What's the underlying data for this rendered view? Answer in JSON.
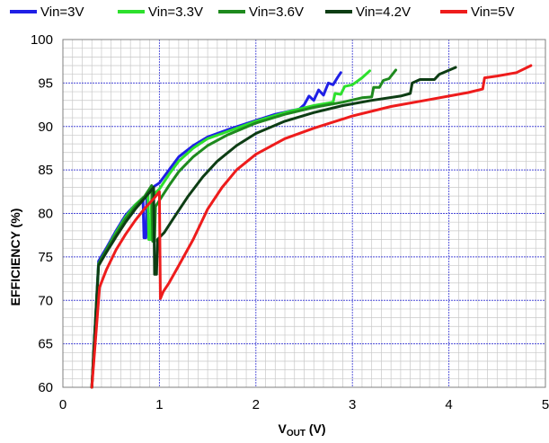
{
  "chart_data": {
    "type": "line",
    "title": "",
    "xlabel": {
      "main": "V",
      "sub": "OUT",
      "rest": " (V)"
    },
    "ylabel": "EFFICIENCY (%)",
    "xlim": [
      0,
      5
    ],
    "ylim": [
      60,
      100
    ],
    "x_ticks": [
      "0",
      "1",
      "2",
      "3",
      "4",
      "5"
    ],
    "y_ticks": [
      "60",
      "65",
      "70",
      "75",
      "80",
      "85",
      "90",
      "95",
      "100"
    ],
    "grid": {
      "major": true,
      "minor": true
    },
    "legend_position": "top",
    "series": [
      {
        "name": "Vin=3V",
        "color": "#1f1fe6",
        "points": [
          [
            0.3,
            60
          ],
          [
            0.37,
            74.5
          ],
          [
            0.45,
            76
          ],
          [
            0.55,
            78
          ],
          [
            0.65,
            79.8
          ],
          [
            0.75,
            81
          ],
          [
            0.83,
            81.8
          ],
          [
            0.84,
            77.2
          ],
          [
            0.86,
            77.2
          ],
          [
            0.87,
            82
          ],
          [
            0.9,
            82.6
          ],
          [
            0.93,
            83
          ],
          [
            1.0,
            83.5
          ],
          [
            1.1,
            85
          ],
          [
            1.2,
            86.5
          ],
          [
            1.35,
            87.8
          ],
          [
            1.5,
            88.8
          ],
          [
            1.7,
            89.6
          ],
          [
            2.0,
            90.7
          ],
          [
            2.2,
            91.4
          ],
          [
            2.45,
            92.0
          ],
          [
            2.5,
            92.5
          ],
          [
            2.55,
            93.5
          ],
          [
            2.6,
            93.0
          ],
          [
            2.65,
            94.2
          ],
          [
            2.7,
            93.6
          ],
          [
            2.75,
            95.0
          ],
          [
            2.8,
            94.8
          ],
          [
            2.85,
            95.7
          ],
          [
            2.88,
            96.2
          ]
        ]
      },
      {
        "name": "Vin=3.3V",
        "color": "#2de02d",
        "points": [
          [
            0.3,
            60
          ],
          [
            0.37,
            74.2
          ],
          [
            0.45,
            75.8
          ],
          [
            0.55,
            77.8
          ],
          [
            0.65,
            79.6
          ],
          [
            0.75,
            81
          ],
          [
            0.85,
            82
          ],
          [
            0.88,
            82.5
          ],
          [
            0.89,
            77
          ],
          [
            0.91,
            77
          ],
          [
            0.92,
            81.8
          ],
          [
            0.96,
            82.4
          ],
          [
            1.0,
            82.8
          ],
          [
            1.1,
            84.5
          ],
          [
            1.2,
            86
          ],
          [
            1.35,
            87.5
          ],
          [
            1.5,
            88.6
          ],
          [
            1.7,
            89.4
          ],
          [
            2.0,
            90.6
          ],
          [
            2.3,
            91.6
          ],
          [
            2.6,
            92.4
          ],
          [
            2.8,
            92.8
          ],
          [
            2.82,
            93.8
          ],
          [
            2.88,
            93.7
          ],
          [
            2.92,
            94.6
          ],
          [
            3.0,
            94.8
          ],
          [
            3.1,
            95.6
          ],
          [
            3.18,
            96.4
          ]
        ]
      },
      {
        "name": "Vin=3.6V",
        "color": "#1e8a1e",
        "points": [
          [
            0.3,
            60
          ],
          [
            0.37,
            74.2
          ],
          [
            0.45,
            75.8
          ],
          [
            0.55,
            77.6
          ],
          [
            0.65,
            79.4
          ],
          [
            0.75,
            80.8
          ],
          [
            0.85,
            82
          ],
          [
            0.92,
            83.2
          ],
          [
            0.93,
            76.8
          ],
          [
            0.95,
            76.8
          ],
          [
            0.96,
            80.8
          ],
          [
            1.0,
            81.5
          ],
          [
            1.1,
            83.2
          ],
          [
            1.2,
            84.8
          ],
          [
            1.35,
            86.5
          ],
          [
            1.5,
            87.8
          ],
          [
            1.7,
            89
          ],
          [
            2.0,
            90.4
          ],
          [
            2.3,
            91.4
          ],
          [
            2.6,
            92.2
          ],
          [
            2.9,
            92.8
          ],
          [
            3.1,
            93.3
          ],
          [
            3.2,
            93.4
          ],
          [
            3.22,
            94.5
          ],
          [
            3.28,
            94.5
          ],
          [
            3.32,
            95.3
          ],
          [
            3.38,
            95.5
          ],
          [
            3.45,
            96.5
          ]
        ]
      },
      {
        "name": "Vin=4.2V",
        "color": "#0d3d14",
        "points": [
          [
            0.3,
            60
          ],
          [
            0.37,
            74
          ],
          [
            0.45,
            75.5
          ],
          [
            0.55,
            77.3
          ],
          [
            0.65,
            79
          ],
          [
            0.75,
            80.5
          ],
          [
            0.85,
            81.8
          ],
          [
            0.94,
            83
          ],
          [
            0.95,
            73
          ],
          [
            0.97,
            73
          ],
          [
            0.98,
            77
          ],
          [
            1.05,
            77.8
          ],
          [
            1.15,
            79.5
          ],
          [
            1.3,
            82
          ],
          [
            1.45,
            84.2
          ],
          [
            1.6,
            86
          ],
          [
            1.8,
            87.8
          ],
          [
            2.0,
            89.2
          ],
          [
            2.3,
            90.6
          ],
          [
            2.6,
            91.6
          ],
          [
            2.9,
            92.4
          ],
          [
            3.2,
            93.0
          ],
          [
            3.5,
            93.5
          ],
          [
            3.6,
            93.8
          ],
          [
            3.62,
            95.0
          ],
          [
            3.7,
            95.4
          ],
          [
            3.85,
            95.4
          ],
          [
            3.9,
            96.0
          ],
          [
            4.07,
            96.8
          ]
        ]
      },
      {
        "name": "Vin=5V",
        "color": "#ee1c1c",
        "points": [
          [
            0.3,
            60
          ],
          [
            0.38,
            71.5
          ],
          [
            0.45,
            73.5
          ],
          [
            0.55,
            75.8
          ],
          [
            0.65,
            77.6
          ],
          [
            0.75,
            79.2
          ],
          [
            0.85,
            80.6
          ],
          [
            0.95,
            81.8
          ],
          [
            1.0,
            82.5
          ],
          [
            1.01,
            70.2
          ],
          [
            1.04,
            71
          ],
          [
            1.1,
            72
          ],
          [
            1.2,
            74
          ],
          [
            1.35,
            77
          ],
          [
            1.5,
            80.5
          ],
          [
            1.65,
            83
          ],
          [
            1.8,
            85
          ],
          [
            2.0,
            86.8
          ],
          [
            2.3,
            88.6
          ],
          [
            2.6,
            89.8
          ],
          [
            3.0,
            91.2
          ],
          [
            3.4,
            92.3
          ],
          [
            3.8,
            93.1
          ],
          [
            4.2,
            93.9
          ],
          [
            4.35,
            94.3
          ],
          [
            4.37,
            95.6
          ],
          [
            4.5,
            95.8
          ],
          [
            4.7,
            96.2
          ],
          [
            4.85,
            97.0
          ]
        ]
      }
    ]
  }
}
